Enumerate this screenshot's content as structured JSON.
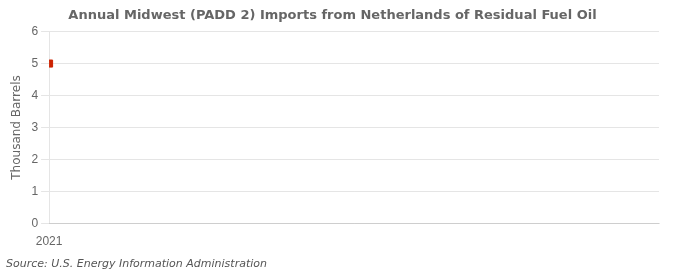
{
  "chart_data": {
    "type": "scatter",
    "title": "Annual Midwest (PADD 2) Imports from Netherlands of Residual Fuel Oil",
    "y_label": "Thousand Barrels",
    "annotation": "Source: U.S. Energy Information Administration",
    "x": [
      2021
    ],
    "values": [
      5
    ],
    "color": "#cc2200",
    "marker": "square",
    "xlim": [
      2021,
      2029
    ],
    "xticks": [
      2021
    ],
    "ylim": [
      0,
      6
    ],
    "yticks": [
      0,
      1,
      2,
      3,
      4,
      5,
      6
    ],
    "grid": "y"
  }
}
